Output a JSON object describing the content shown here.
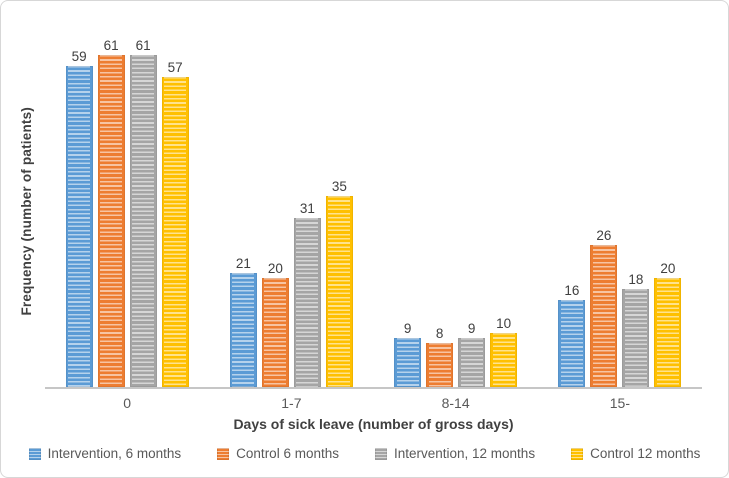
{
  "chart_data": {
    "type": "bar",
    "title": "",
    "xlabel": "Days of sick leave (number of gross days)",
    "ylabel": "Frequency (number of patients)",
    "categories": [
      "0",
      "1-7",
      "8-14",
      "15-"
    ],
    "series": [
      {
        "name": "Intervention, 6 months",
        "color": "#5B9BD5",
        "values": [
          59,
          21,
          9,
          16
        ]
      },
      {
        "name": "Control 6 months",
        "color": "#ED7D31",
        "values": [
          61,
          20,
          8,
          26
        ]
      },
      {
        "name": "Intervention, 12 months",
        "color": "#A5A5A5",
        "values": [
          61,
          31,
          9,
          18
        ]
      },
      {
        "name": "Control 12 months",
        "color": "#FFC000",
        "values": [
          57,
          35,
          10,
          20
        ]
      }
    ],
    "ylim": [
      0,
      65
    ],
    "grid": false,
    "data_labels": true,
    "legend_position": "bottom"
  },
  "style_colors": {
    "axis_line": "#C6C6C6",
    "label_text": "#404040",
    "category_text": "#595959",
    "frame_border": "#D7D7D7"
  }
}
